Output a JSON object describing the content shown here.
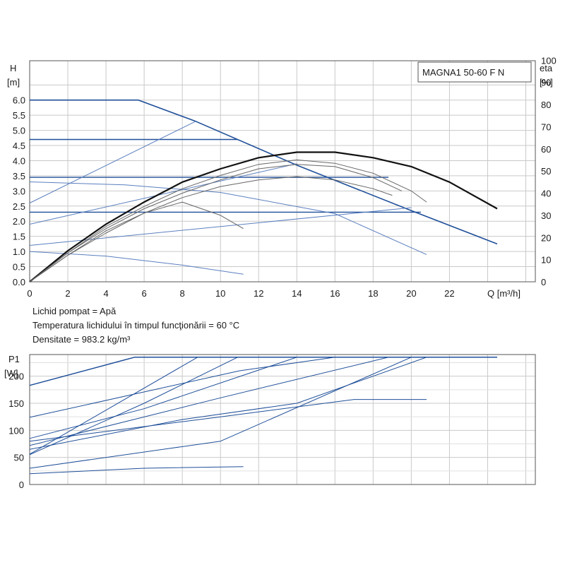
{
  "chart_data": [
    {
      "type": "line",
      "title": "MAGNA1 50-60 F N",
      "ylabel": "H",
      "ylabel_unit": "[m]",
      "y2label": "eta",
      "y2label_unit": "[%]",
      "xlabel": "Q [m³/h]",
      "xlim": [
        0,
        26.5
      ],
      "ylim": [
        0,
        7.3
      ],
      "y2lim": [
        0,
        100
      ],
      "x_ticks": [
        "0",
        "2",
        "4",
        "6",
        "8",
        "10",
        "12",
        "14",
        "16",
        "18",
        "20",
        "22"
      ],
      "y_ticks": [
        "0.0",
        "0.5",
        "1.0",
        "1.5",
        "2.0",
        "2.5",
        "3.0",
        "3.5",
        "4.0",
        "4.5",
        "5.0",
        "5.5",
        "6.0"
      ],
      "y2_ticks": [
        "0",
        "10",
        "20",
        "30",
        "40",
        "50",
        "60",
        "70",
        "80",
        "90",
        "100"
      ],
      "grid": true,
      "series": [
        {
          "name": "max-curve",
          "x": [
            0,
            5.7,
            8.7,
            14,
            20,
            24.5
          ],
          "y": [
            6.0,
            6.0,
            5.3,
            3.85,
            2.35,
            1.25
          ]
        },
        {
          "name": "const-pressure-4.7",
          "x": [
            0,
            10.9
          ],
          "y": [
            4.7,
            4.7
          ]
        },
        {
          "name": "const-pressure-3.45",
          "x": [
            0,
            18.8
          ],
          "y": [
            3.45,
            3.45
          ]
        },
        {
          "name": "const-pressure-2.3",
          "x": [
            0,
            20.5
          ],
          "y": [
            2.3,
            2.3
          ]
        },
        {
          "name": "prop-pressure-1",
          "x": [
            0,
            8.7
          ],
          "y": [
            2.6,
            5.3
          ]
        },
        {
          "name": "prop-pressure-2",
          "x": [
            0,
            14
          ],
          "y": [
            1.9,
            3.9
          ]
        },
        {
          "name": "prop-pressure-3",
          "x": [
            0,
            20
          ],
          "y": [
            1.2,
            2.45
          ]
        },
        {
          "name": "min-curve-1",
          "x": [
            0,
            5,
            10,
            16,
            20.8
          ],
          "y": [
            3.3,
            3.2,
            2.95,
            2.25,
            0.9
          ]
        },
        {
          "name": "min-curve-2",
          "x": [
            0,
            4,
            8,
            11.2
          ],
          "y": [
            1.0,
            0.85,
            0.55,
            0.25
          ]
        },
        {
          "name": "eta-max",
          "x": [
            0,
            2,
            4,
            6,
            8,
            10,
            12,
            14,
            16,
            18,
            20,
            22,
            24.5
          ],
          "y": [
            0,
            14,
            26,
            36,
            45,
            51,
            56,
            58.5,
            58.5,
            56,
            52,
            45,
            33
          ]
        },
        {
          "name": "eta-1",
          "x": [
            0,
            2,
            4,
            6,
            8,
            10,
            12,
            14,
            16,
            18,
            19.5
          ],
          "y": [
            0,
            13,
            24,
            33,
            40,
            46,
            51,
            53,
            52,
            47,
            41
          ]
        },
        {
          "name": "eta-2",
          "x": [
            0,
            2,
            4,
            6,
            8,
            10,
            12,
            14,
            16,
            18,
            20,
            20.8
          ],
          "y": [
            0,
            13,
            25,
            34,
            42,
            48,
            53,
            55,
            53.5,
            49,
            41,
            36
          ]
        },
        {
          "name": "eta-3",
          "x": [
            0,
            2,
            4,
            6,
            8,
            10,
            12,
            14,
            16,
            18,
            19
          ],
          "y": [
            0,
            12,
            22,
            31,
            38,
            43,
            46,
            47.5,
            46,
            42,
            39
          ]
        },
        {
          "name": "eta-4",
          "x": [
            0,
            2,
            4,
            6,
            8,
            10,
            11.2
          ],
          "y": [
            0,
            12,
            23,
            31,
            36,
            30,
            24
          ]
        }
      ]
    },
    {
      "type": "line",
      "ylabel": "P1",
      "ylabel_unit": "[W]",
      "xlim": [
        0,
        26.5
      ],
      "ylim": [
        0,
        240
      ],
      "y_ticks": [
        "0",
        "50",
        "100",
        "150",
        "200"
      ],
      "grid": true,
      "series": [
        {
          "name": "p-max",
          "x": [
            0,
            5.5,
            24.5
          ],
          "y": [
            183,
            235,
            235
          ]
        },
        {
          "name": "p-2",
          "x": [
            0,
            11,
            16
          ],
          "y": [
            124,
            210,
            235
          ]
        },
        {
          "name": "p-3",
          "x": [
            0,
            6,
            10.9
          ],
          "y": [
            55,
            150,
            235
          ]
        },
        {
          "name": "p-4",
          "x": [
            0,
            8.8
          ],
          "y": [
            56,
            235
          ]
        },
        {
          "name": "p-5",
          "x": [
            0,
            10,
            18.8
          ],
          "y": [
            72,
            160,
            235
          ]
        },
        {
          "name": "p-6",
          "x": [
            0,
            6,
            14
          ],
          "y": [
            85,
            140,
            235
          ]
        },
        {
          "name": "p-7",
          "x": [
            0,
            10,
            20
          ],
          "y": [
            30,
            80,
            235
          ]
        },
        {
          "name": "p-8",
          "x": [
            0,
            8,
            14,
            20.8
          ],
          "y": [
            65,
            120,
            150,
            235
          ]
        },
        {
          "name": "p-9",
          "x": [
            0,
            10,
            17,
            20.8
          ],
          "y": [
            80,
            125,
            157,
            157
          ]
        },
        {
          "name": "p-10",
          "x": [
            0,
            6,
            11.2
          ],
          "y": [
            20,
            30,
            33
          ]
        }
      ]
    }
  ],
  "notes": {
    "fluid": "Lichid pompat = Apă",
    "temperature": "Temperatura lichidului în timpul funcţionării = 60 °C",
    "density": "Densitate = 983.2 kg/m³"
  }
}
